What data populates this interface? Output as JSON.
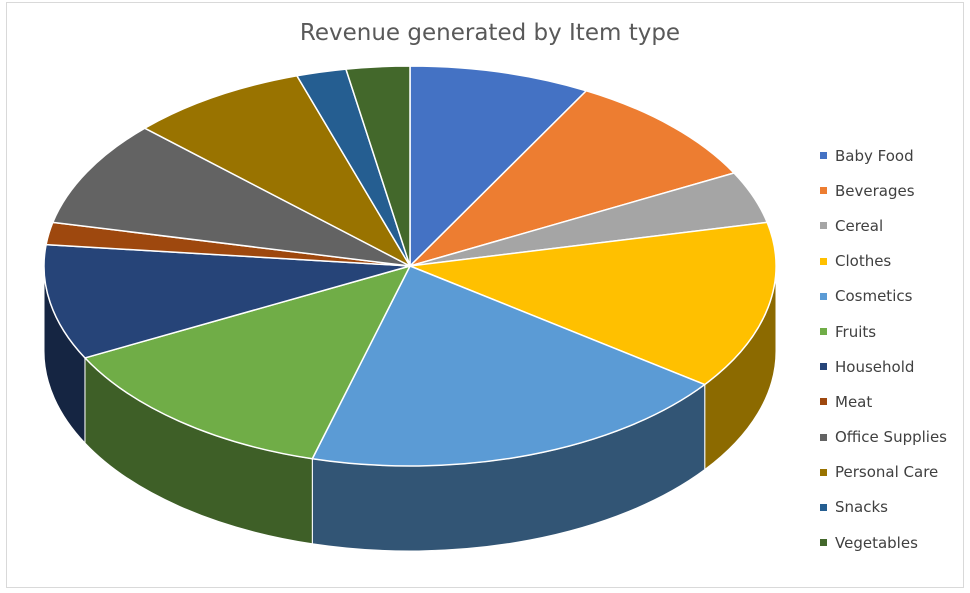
{
  "chart_data": {
    "type": "pie",
    "title": "Revenue generated by Item type",
    "legend_position": "right",
    "style": "3d",
    "categories": [
      "Baby Food",
      "Beverages",
      "Cereal",
      "Clothes",
      "Cosmetics",
      "Fruits",
      "Household",
      "Meat",
      "Office Supplies",
      "Personal Care",
      "Snacks",
      "Vegetables"
    ],
    "values": [
      8.0,
      9.3,
      4.2,
      13.6,
      19.2,
      13.1,
      9.3,
      1.8,
      8.6,
      7.9,
      2.2,
      2.8
    ],
    "colors": [
      "#4472C4",
      "#ED7D31",
      "#A5A5A5",
      "#FFC000",
      "#5B9BD5",
      "#70AD47",
      "#264478",
      "#9E480E",
      "#636363",
      "#997300",
      "#255E91",
      "#43682B"
    ]
  }
}
